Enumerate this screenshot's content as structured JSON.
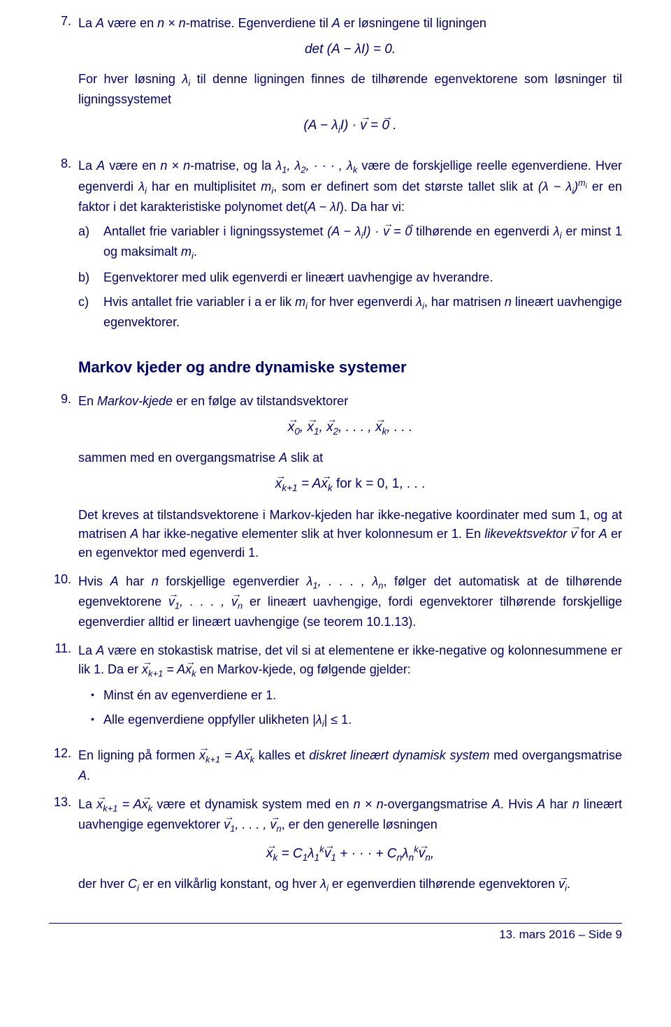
{
  "colors": {
    "text": "#000066",
    "background": "#ffffff"
  },
  "typography": {
    "body_fontsize": 18,
    "heading_fontsize": 22,
    "math_fontsize": 19
  },
  "item7": {
    "num": "7.",
    "p1a": "La ",
    "p1b": " være en ",
    "p1c": "-matrise. Egenverdiene til ",
    "p1d": " er løsningene til ligningen",
    "eq1": "det (A − λI) = 0.",
    "p2a": "For hver løsning ",
    "p2b": " til denne ligningen finnes de tilhørende egenvektorene som løsninger til ligningssystemet",
    "eq2a": "(A − λ",
    "eq2b": "I) · ",
    "eq2c": " = ",
    "eq2d": " ."
  },
  "item8": {
    "num": "8.",
    "p1a": "La ",
    "p1b": " være en ",
    "p1c": "-matrise, og la ",
    "p1d": " være de forskjellige reelle egenverdiene. Hver egenverdi ",
    "p1e": " har en multiplisitet ",
    "p1f": ", som er definert som det største tallet slik at ",
    "p1g": " er en faktor i det karakteristiske polynomet det(",
    "p1h": "). Da har vi:",
    "a_lbl": "a)",
    "a_t1": "Antallet frie variabler i ligningssystemet ",
    "a_t2": " tilhørende en egenverdi ",
    "a_t3": " er minst 1 og maksimalt ",
    "b_lbl": "b)",
    "b_t": "Egenvektorer med ulik egenverdi er lineært uavhengige av hverandre.",
    "c_lbl": "c)",
    "c_t1": "Hvis antallet frie variabler i a er lik ",
    "c_t2": " for hver egenverdi ",
    "c_t3": ", har matrisen ",
    "c_t4": " lineært uavhengige egenvektorer."
  },
  "heading": "Markov kjeder og andre dynamiske systemer",
  "item9": {
    "num": "9.",
    "p1a": "En ",
    "p1b": "Markov-kjede",
    "p1c": " er en følge av tilstandsvektorer",
    "p2": "sammen med en overgangsmatrise ",
    "p2b": " slik at",
    "eq2_tail": "    for k = 0, 1, . . .",
    "p3a": "Det kreves at tilstandsvektorene i Markov-kjeden har ikke-negative koordinater med sum 1, og at matrisen ",
    "p3b": " har ikke-negative elementer slik at hver kolonnesum er 1. En ",
    "p3c": "likevektsvektor",
    "p3d": " for ",
    "p3e": " er en egenvektor med egenverdi 1."
  },
  "item10": {
    "num": "10.",
    "t1": "Hvis ",
    "t2": " har ",
    "t3": " forskjellige egenverdier ",
    "t4": ", følger det automatisk at de tilhørende egenvektorene ",
    "t5": " er lineært uavhengige, fordi egenvektorer tilhørende forskjellige egenverdier alltid er lineært uavhengige (se teorem 10.1.13)."
  },
  "item11": {
    "num": "11.",
    "t1": "La ",
    "t2": " være en stokastisk matrise, det vil si at elementene er ikke-negative og kolonnesummene er lik 1. Da er ",
    "t3": " en Markov-kjede, og følgende gjelder:",
    "b1": "Minst én av egenverdiene er 1.",
    "b2a": "Alle egenverdiene oppfyller ulikheten |",
    "b2b": "| ≤ 1."
  },
  "item12": {
    "num": "12.",
    "t1": "En ligning på formen ",
    "t2": " kalles et ",
    "t3": "diskret lineært dynamisk system",
    "t4": " med overgangsmatrise "
  },
  "item13": {
    "num": "13.",
    "t1": "La ",
    "t2": " være et dynamisk system med en ",
    "t3": "-overgangsmatrise ",
    "t4": ". Hvis ",
    "t5": " har ",
    "t6": " lineært uavhengige egenvektorer ",
    "t7": ", er den generelle løsningen",
    "t8": "der hver ",
    "t9": " er en vilkårlig konstant, og hver ",
    "t10": " er egenverdien tilhørende egenvektoren "
  },
  "footer": "13. mars 2016 – Side 9"
}
